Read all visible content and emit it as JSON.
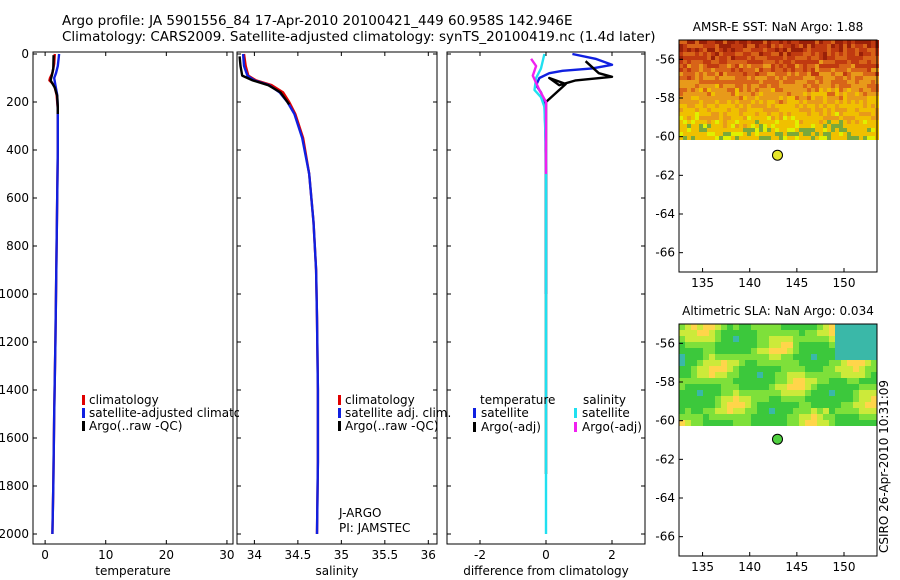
{
  "header": {
    "line1": "Argo profile: JA 5901556_84 17-Apr-2010 20100421_449 60.958S 142.946E",
    "line2": "Climatology: CARS2009. Satellite-adjusted climatology: synTS_20100419.nc (1.4d later)"
  },
  "colors": {
    "red": "#e00000",
    "blue": "#1020e0",
    "black": "#000000",
    "cyan": "#20e0f0",
    "magenta": "#f020f0"
  },
  "chart_data": [
    {
      "type": "line",
      "name": "temperature-profile",
      "xlabel": "temperature",
      "ylabel": "",
      "xlim": [
        -2,
        31
      ],
      "ylim": [
        2050,
        0
      ],
      "y_reversed": true,
      "xticks": [
        0,
        10,
        20,
        30
      ],
      "xticklabels": [
        "0",
        "10",
        "20",
        "30"
      ],
      "yticks": [
        0,
        200,
        400,
        600,
        800,
        1000,
        1200,
        1400,
        1600,
        1800,
        2000
      ],
      "yticklabels": [
        "0",
        "200",
        "400",
        "600",
        "800",
        "1000",
        "1200",
        "1400",
        "1600",
        "1800",
        "2000"
      ],
      "series": [
        {
          "name": "climatology",
          "color": "red",
          "x": [
            1.6,
            1.5,
            1.2,
            0.8,
            0.7,
            1.5,
            1.9,
            2.1,
            2.1,
            1.9,
            1.7,
            1.5,
            1.35,
            1.2
          ],
          "y": [
            0,
            40,
            80,
            100,
            110,
            130,
            170,
            230,
            400,
            800,
            1200,
            1500,
            1800,
            2000
          ]
        },
        {
          "name": "satellite-adjusted climatology",
          "color": "blue",
          "x": [
            2.3,
            2.1,
            1.8,
            1.5,
            1.7,
            2.0,
            2.1,
            2.1,
            1.9,
            1.7,
            1.5,
            1.35,
            1.2
          ],
          "y": [
            0,
            50,
            80,
            100,
            130,
            170,
            230,
            400,
            800,
            1200,
            1500,
            1800,
            2000
          ]
        },
        {
          "name": "Argo(..raw -QC)",
          "color": "black",
          "x": [
            1.4,
            1.35,
            1.1,
            0.9,
            1.6,
            2.0,
            2.1,
            2.1
          ],
          "y": [
            5,
            60,
            90,
            110,
            140,
            175,
            220,
            250
          ]
        }
      ],
      "legend": {
        "position": "lower-right",
        "entries": [
          "climatology",
          "satellite-adjusted climatology",
          "Argo(..raw -QC)"
        ]
      }
    },
    {
      "type": "line",
      "name": "salinity-profile",
      "xlabel": "salinity",
      "ylabel": "",
      "xlim": [
        33.8,
        36.1
      ],
      "ylim": [
        2050,
        0
      ],
      "y_reversed": true,
      "xticks": [
        34,
        34.5,
        35,
        35.5,
        36
      ],
      "xticklabels": [
        "34",
        "34.5",
        "35",
        "35.5",
        "36"
      ],
      "series": [
        {
          "name": "climatology",
          "color": "red",
          "x": [
            33.88,
            33.9,
            33.93,
            34.02,
            34.2,
            34.33,
            34.4,
            34.47,
            34.56,
            34.63,
            34.68,
            34.71,
            34.72,
            34.73,
            34.73,
            34.72
          ],
          "y": [
            0,
            50,
            90,
            110,
            130,
            160,
            200,
            250,
            350,
            500,
            700,
            900,
            1100,
            1400,
            1700,
            2000
          ]
        },
        {
          "name": "satellite adj. clim.",
          "color": "blue",
          "x": [
            33.87,
            33.88,
            33.92,
            34.0,
            34.17,
            34.29,
            34.38,
            34.46,
            34.55,
            34.63,
            34.68,
            34.71,
            34.72,
            34.73,
            34.73,
            34.72
          ],
          "y": [
            0,
            50,
            90,
            110,
            130,
            160,
            200,
            250,
            350,
            500,
            700,
            900,
            1100,
            1400,
            1700,
            2000
          ]
        },
        {
          "name": "Argo(..raw -QC)",
          "color": "black",
          "x": [
            33.83,
            33.84,
            33.86,
            33.98,
            34.16,
            34.3,
            34.36,
            34.4
          ],
          "y": [
            10,
            50,
            90,
            110,
            130,
            160,
            190,
            210
          ]
        }
      ],
      "legend": {
        "position": "lower-right",
        "entries": [
          "climatology",
          "satellite adj. clim.",
          "Argo(..raw -QC)"
        ]
      },
      "annotations": [
        "J-ARGO",
        "PI: JAMSTEC"
      ]
    },
    {
      "type": "line",
      "name": "difference-profile",
      "xlabel": "difference from climatology",
      "ylabel": "",
      "xlim": [
        -3,
        3
      ],
      "ylim": [
        2050,
        0
      ],
      "y_reversed": true,
      "xticks": [
        -2,
        0,
        2
      ],
      "xticklabels": [
        "-2",
        "0",
        "2"
      ],
      "series": [
        {
          "name": "temperature satellite",
          "color": "blue",
          "x": [
            0.8,
            1.5,
            2.0,
            1.4,
            0.5,
            0.1,
            -0.2,
            -0.3,
            -0.15,
            -0.05,
            -0.02,
            0.0,
            0.0
          ],
          "y": [
            0,
            20,
            45,
            60,
            70,
            80,
            100,
            130,
            160,
            200,
            300,
            500,
            1000
          ]
        },
        {
          "name": "temperature Argo(-adj)",
          "color": "black",
          "x": [
            1.2,
            1.6,
            2.0,
            0.9,
            0.4,
            0.1,
            0.6,
            0.4,
            0.0,
            0.0,
            0.0,
            0.0
          ],
          "y": [
            30,
            80,
            95,
            110,
            130,
            100,
            125,
            150,
            200,
            400,
            800,
            1750
          ]
        },
        {
          "name": "salinity satellite",
          "color": "cyan",
          "x": [
            -0.05,
            -0.15,
            -0.3,
            -0.35,
            -0.15,
            -0.05,
            0.0,
            0.0,
            0.0
          ],
          "y": [
            0,
            60,
            100,
            150,
            180,
            220,
            400,
            1000,
            2000
          ]
        },
        {
          "name": "salinity Argo(-adj)",
          "color": "magenta",
          "x": [
            -0.45,
            -0.3,
            -0.4,
            -0.2,
            0.0,
            0.0
          ],
          "y": [
            20,
            50,
            90,
            150,
            200,
            500
          ]
        }
      ],
      "legend": {
        "position": "lower-right",
        "headers": [
          "temperature",
          "salinity"
        ],
        "entries": [
          "satellite",
          "Argo(-adj)",
          "satellite",
          "Argo(-adj)"
        ]
      }
    },
    {
      "type": "heatmap",
      "name": "amsre-sst-map",
      "title": "AMSR-E SST: NaN Argo: 1.88",
      "xlim": [
        132.5,
        153.5
      ],
      "ylim": [
        -67,
        -55
      ],
      "xticks": [
        135,
        140,
        145,
        150
      ],
      "xticklabels": [
        "135",
        "140",
        "145",
        "150"
      ],
      "yticks": [
        -56,
        -58,
        -60,
        -62,
        -64,
        -66
      ],
      "yticklabels": [
        "-56",
        "-58",
        "-60",
        "-62",
        "-64",
        "-66"
      ],
      "data_extent_lat": [
        -60,
        -55
      ],
      "palette": "red-orange-yellow-green",
      "argo_point": {
        "lon": 142.946,
        "lat": -60.958,
        "color": "#e6e62a"
      }
    },
    {
      "type": "heatmap",
      "name": "altimetric-sla-map",
      "title": "Altimetric SLA: NaN Argo: 0.034",
      "xlim": [
        132.5,
        153.5
      ],
      "ylim": [
        -67,
        -55
      ],
      "xticks": [
        135,
        140,
        145,
        150
      ],
      "xticklabels": [
        "135",
        "140",
        "145",
        "150"
      ],
      "yticks": [
        -56,
        -58,
        -60,
        -62,
        -64,
        -66
      ],
      "yticklabels": [
        "-56",
        "-58",
        "-60",
        "-62",
        "-64",
        "-66"
      ],
      "data_extent_lat": [
        -60,
        -55
      ],
      "palette": "green-yellow-orange-cyan",
      "argo_point": {
        "lon": 142.946,
        "lat": -60.958,
        "color": "#50d040"
      }
    }
  ],
  "footer": {
    "stamp": "CSIRO 26-Apr-2010 10:31:09"
  }
}
